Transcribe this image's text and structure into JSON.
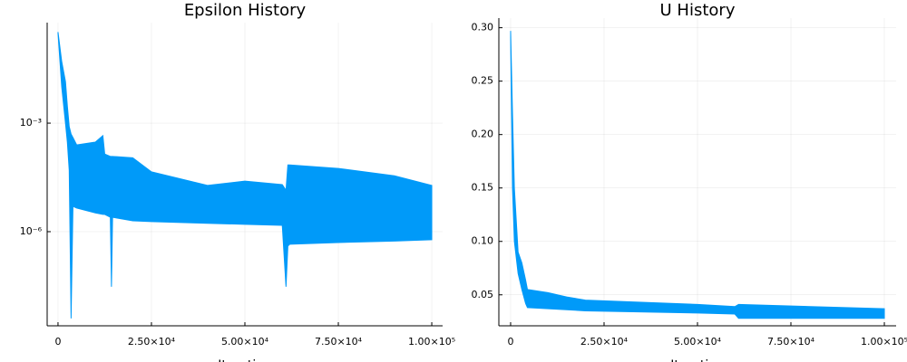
{
  "chart_data": [
    {
      "type": "area-band",
      "title": "Epsilon History",
      "x_label": "Iteration",
      "log_y": true,
      "grid": true,
      "x": [
        0,
        1000,
        2000,
        2500,
        3000,
        3500,
        4000,
        5000,
        10000,
        12000,
        12500,
        14000,
        14300,
        14600,
        20000,
        25000,
        40000,
        50000,
        60000,
        61000,
        61500,
        62000,
        75000,
        90000,
        100000
      ],
      "series": [
        {
          "color": "#009af9",
          "values": [
            0.33,
            0.05,
            0.014,
            0.003,
            0.0008,
            0.0005,
            0.0004,
            0.00025,
            0.0003,
            0.00045,
            0.00014,
            0.00012,
            0.00012,
            0.00012,
            0.00011,
            4.5e-05,
            1.9e-05,
            2.5e-05,
            2e-05,
            1.4e-05,
            7e-05,
            7e-05,
            5.6e-05,
            3.5e-05,
            1.9e-05
          ]
        },
        {
          "color": "#009af9",
          "values": [
            0.3,
            0.01,
            0.001,
            0.0003,
            5e-05,
            4e-09,
            5e-06,
            4.5e-06,
            3.3e-06,
            3e-06,
            3e-06,
            2.5e-06,
            3e-08,
            2.5e-06,
            2e-06,
            1.9e-06,
            1.7e-06,
            1.6e-06,
            1.5e-06,
            3e-08,
            4e-07,
            4.5e-07,
            5e-07,
            5.5e-07,
            6e-07
          ]
        }
      ],
      "xlim": [
        -2900,
        102900
      ],
      "xticks": [
        0,
        {
          "value": 25000,
          "label": "2.50×10⁴"
        },
        {
          "value": 50000,
          "label": "5.00×10⁴"
        },
        {
          "value": 75000,
          "label": "7.50×10⁴"
        },
        {
          "value": 100000,
          "label": "1.00×10⁵"
        }
      ],
      "ylim": [
        2.5e-09,
        0.6
      ],
      "yticks": [
        {
          "value": 0.001,
          "label": "10⁻³"
        },
        {
          "value": 1e-06,
          "label": "10⁻⁶"
        }
      ]
    },
    {
      "type": "area-band",
      "title": "U History",
      "x_label": "Iteration",
      "log_y": false,
      "grid": true,
      "x": [
        0,
        500,
        1000,
        2000,
        3000,
        4000,
        4500,
        10000,
        15000,
        20000,
        50000,
        60000,
        61000,
        100000
      ],
      "series": [
        {
          "color": "#009af9",
          "values": [
            0.297,
            0.22,
            0.15,
            0.09,
            0.08,
            0.064,
            0.055,
            0.052,
            0.048,
            0.045,
            0.041,
            0.039,
            0.041,
            0.037
          ]
        },
        {
          "color": "#009af9",
          "values": [
            0.29,
            0.15,
            0.1,
            0.07,
            0.055,
            0.042,
            0.038,
            0.037,
            0.036,
            0.035,
            0.033,
            0.032,
            0.028,
            0.028
          ]
        }
      ],
      "xlim": [
        -3150,
        103150
      ],
      "xticks": [
        0,
        {
          "value": 25000,
          "label": "2.50×10⁴"
        },
        {
          "value": 50000,
          "label": "5.00×10⁴"
        },
        {
          "value": 75000,
          "label": "7.50×10⁴"
        },
        {
          "value": 100000,
          "label": "1.00×10⁵"
        }
      ],
      "ylim": [
        0.021,
        0.309
      ],
      "yticks": [
        {
          "value": 0.05,
          "label": "0.05"
        },
        {
          "value": 0.1,
          "label": "0.10"
        },
        {
          "value": 0.15,
          "label": "0.15"
        },
        {
          "value": 0.2,
          "label": "0.20"
        },
        {
          "value": 0.25,
          "label": "0.25"
        },
        {
          "value": 0.3,
          "label": "0.30"
        }
      ]
    }
  ]
}
